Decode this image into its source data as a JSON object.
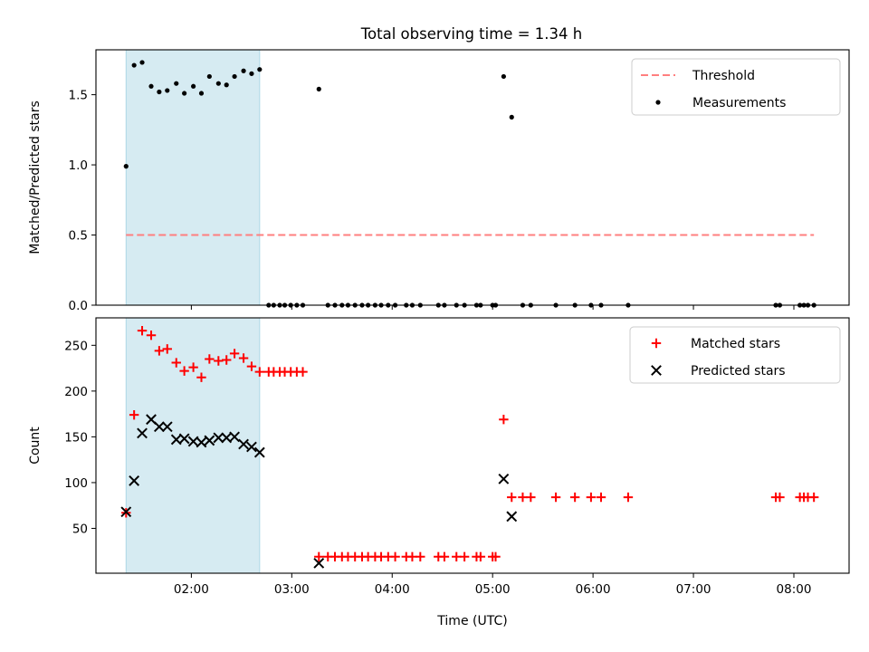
{
  "figure_title": "Total observing time = 1.34 h",
  "chart_data": [
    {
      "type": "scatter",
      "ylabel": "Matched/Predicted stars",
      "xlabel": "",
      "xlim": [
        1.05,
        8.55
      ],
      "ylim": [
        0.0,
        1.82
      ],
      "x_ticks": [
        {
          "v": 2,
          "label": "02:00"
        },
        {
          "v": 3,
          "label": "03:00"
        },
        {
          "v": 4,
          "label": "04:00"
        },
        {
          "v": 5,
          "label": "05:00"
        },
        {
          "v": 6,
          "label": "06:00"
        },
        {
          "v": 7,
          "label": "07:00"
        },
        {
          "v": 8,
          "label": "08:00"
        }
      ],
      "y_ticks": [
        {
          "v": 0.0,
          "label": "0.0"
        },
        {
          "v": 0.5,
          "label": "0.5"
        },
        {
          "v": 1.0,
          "label": "1.0"
        },
        {
          "v": 1.5,
          "label": "1.5"
        }
      ],
      "shaded_span": [
        1.35,
        2.68
      ],
      "shade_color": "#add8e6",
      "threshold": {
        "name": "Threshold",
        "y": 0.5,
        "x": [
          1.35,
          8.2
        ],
        "color": "#ff7f7f"
      },
      "series": [
        {
          "name": "Measurements",
          "marker": "dot",
          "color": "#000000",
          "x": [
            1.35,
            1.43,
            1.51,
            1.6,
            1.68,
            1.76,
            1.85,
            1.93,
            2.02,
            2.1,
            2.18,
            2.27,
            2.35,
            2.43,
            2.52,
            2.6,
            2.68,
            2.77,
            2.82,
            2.88,
            2.93,
            2.99,
            3.05,
            3.11,
            3.27,
            3.36,
            3.43,
            3.5,
            3.56,
            3.63,
            3.7,
            3.76,
            3.83,
            3.89,
            3.96,
            4.03,
            4.14,
            4.2,
            4.28,
            4.46,
            4.52,
            4.64,
            4.72,
            4.84,
            4.88,
            5.0,
            5.03,
            5.11,
            5.19,
            5.3,
            5.38,
            5.63,
            5.82,
            5.98,
            6.08,
            6.35,
            7.82,
            7.86,
            8.06,
            8.1,
            8.14,
            8.2
          ],
          "y": [
            0.99,
            1.71,
            1.73,
            1.56,
            1.52,
            1.53,
            1.58,
            1.51,
            1.56,
            1.51,
            1.63,
            1.58,
            1.57,
            1.63,
            1.67,
            1.65,
            1.68,
            0,
            0,
            0,
            0,
            0,
            0,
            0,
            1.54,
            0,
            0,
            0,
            0,
            0,
            0,
            0,
            0,
            0,
            0,
            0,
            0,
            0,
            0,
            0,
            0,
            0,
            0,
            0,
            0,
            0,
            0,
            1.63,
            1.34,
            0,
            0,
            0,
            0,
            0,
            0,
            0,
            0,
            0,
            0,
            0,
            0,
            0
          ]
        }
      ],
      "legend": {
        "position": "top-right",
        "entries": [
          "Threshold",
          "Measurements"
        ]
      }
    },
    {
      "type": "scatter",
      "ylabel": "Count",
      "xlabel": "Time (UTC)",
      "xlim": [
        1.05,
        8.55
      ],
      "ylim": [
        1,
        280
      ],
      "x_ticks": [
        {
          "v": 2,
          "label": "02:00"
        },
        {
          "v": 3,
          "label": "03:00"
        },
        {
          "v": 4,
          "label": "04:00"
        },
        {
          "v": 5,
          "label": "05:00"
        },
        {
          "v": 6,
          "label": "06:00"
        },
        {
          "v": 7,
          "label": "07:00"
        },
        {
          "v": 8,
          "label": "08:00"
        }
      ],
      "y_ticks": [
        {
          "v": 50,
          "label": "50"
        },
        {
          "v": 100,
          "label": "100"
        },
        {
          "v": 150,
          "label": "150"
        },
        {
          "v": 200,
          "label": "200"
        },
        {
          "v": 250,
          "label": "250"
        }
      ],
      "shaded_span": [
        1.35,
        2.68
      ],
      "shade_color": "#add8e6",
      "series": [
        {
          "name": "Matched stars",
          "marker": "plus",
          "color": "#ff0000",
          "x": [
            1.35,
            1.43,
            1.51,
            1.6,
            1.68,
            1.76,
            1.85,
            1.93,
            2.02,
            2.1,
            2.18,
            2.27,
            2.35,
            2.43,
            2.52,
            2.6,
            2.68,
            2.77,
            2.82,
            2.88,
            2.93,
            2.99,
            3.05,
            3.11,
            3.27,
            3.36,
            3.43,
            3.5,
            3.56,
            3.63,
            3.7,
            3.76,
            3.83,
            3.89,
            3.96,
            4.03,
            4.14,
            4.2,
            4.28,
            4.46,
            4.52,
            4.64,
            4.72,
            4.84,
            4.88,
            5.0,
            5.03,
            5.11,
            5.19,
            5.3,
            5.38,
            5.63,
            5.82,
            5.98,
            6.08,
            6.35,
            7.82,
            7.86,
            8.06,
            8.1,
            8.14,
            8.2
          ],
          "y": [
            67,
            174,
            266,
            261,
            244,
            246,
            231,
            222,
            226,
            215,
            235,
            233,
            234,
            241,
            236,
            227,
            221,
            221,
            221,
            221,
            221,
            221,
            221,
            221,
            19,
            19,
            19,
            19,
            19,
            19,
            19,
            19,
            19,
            19,
            19,
            19,
            19,
            19,
            19,
            19,
            19,
            19,
            19,
            19,
            19,
            19,
            19,
            169,
            84,
            84,
            84,
            84,
            84,
            84,
            84,
            84,
            84,
            84,
            84,
            84,
            84,
            84
          ]
        },
        {
          "name": "Predicted stars",
          "marker": "x",
          "color": "#000000",
          "x": [
            1.35,
            1.43,
            1.51,
            1.6,
            1.68,
            1.76,
            1.85,
            1.93,
            2.02,
            2.1,
            2.18,
            2.27,
            2.35,
            2.43,
            2.52,
            2.6,
            2.68,
            3.27,
            5.11,
            5.19
          ],
          "y": [
            68,
            102,
            154,
            169,
            161,
            161,
            147,
            148,
            145,
            144,
            146,
            149,
            149,
            150,
            142,
            139,
            133,
            12,
            104,
            63
          ]
        }
      ],
      "legend": {
        "position": "top-right",
        "entries": [
          "Matched stars",
          "Predicted stars"
        ]
      }
    }
  ]
}
